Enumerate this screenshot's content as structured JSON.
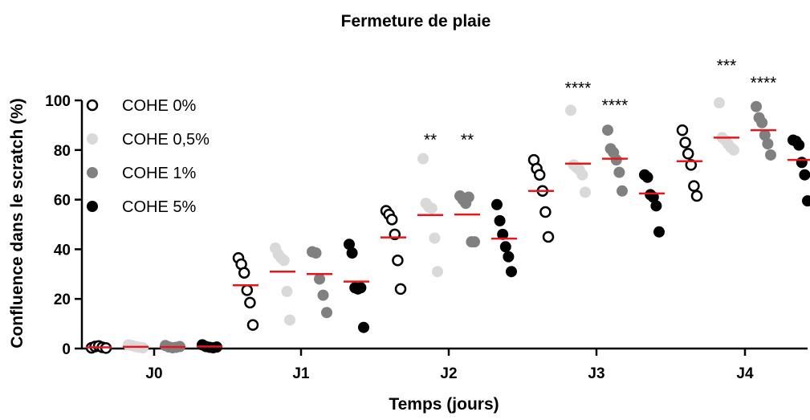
{
  "chart_data": {
    "type": "scatter",
    "title": "Fermeture de plaie",
    "xlabel": "Temps (jours)",
    "ylabel": "Confluence dans le scratch (%)",
    "categories": [
      "J0",
      "J1",
      "J2",
      "J3",
      "J4"
    ],
    "ylim": [
      0,
      100
    ],
    "yticks": [
      0,
      20,
      40,
      60,
      80,
      100
    ],
    "legend_position": "top-left",
    "mean_color": "#e8161b",
    "series": [
      {
        "name": "COHE 0%",
        "fill": "none",
        "stroke": "#000000",
        "points": [
          [
            0.3,
            0.8,
            1.0,
            0.5,
            0.2
          ],
          [
            36.5,
            34.0,
            30.5,
            23.5,
            18.5,
            9.5
          ],
          [
            55.5,
            54.0,
            52.0,
            46.0,
            35.5,
            24.0
          ],
          [
            76.0,
            72.5,
            70.0,
            63.5,
            55.0,
            45.0
          ],
          [
            88.0,
            83.0,
            78.5,
            74.0,
            65.5,
            61.5
          ]
        ],
        "means": [
          0.5,
          25.5,
          44.8,
          63.5,
          75.5
        ]
      },
      {
        "name": "COHE 0,5%",
        "fill": "#d9d9d9",
        "stroke": "#d9d9d9",
        "points": [
          [
            1.5,
            1.2,
            0.8,
            0.5,
            0.3
          ],
          [
            40.5,
            38.0,
            36.5,
            35.5,
            23.0,
            11.5
          ],
          [
            76.5,
            58.5,
            57.0,
            56.5,
            44.5,
            31.0
          ],
          [
            96.0,
            74.0,
            73.0,
            72.0,
            70.0,
            63.0
          ],
          [
            99.0,
            85.0,
            84.0,
            82.5,
            81.0,
            80.0
          ]
        ],
        "means": [
          0.7,
          31.0,
          53.8,
          74.5,
          85.0
        ]
      },
      {
        "name": "COHE 1%",
        "fill": "#808080",
        "stroke": "#808080",
        "points": [
          [
            1.2,
            0.6,
            0.3,
            0.5,
            0.8
          ],
          [
            39.0,
            38.5,
            28.0,
            21.5,
            14.5
          ],
          [
            61.5,
            60.0,
            58.5,
            61.0,
            43.0,
            43.0
          ],
          [
            88.0,
            80.5,
            79.0,
            76.0,
            71.0,
            63.5
          ],
          [
            97.5,
            93.0,
            91.0,
            86.0,
            82.5,
            78.0
          ]
        ],
        "means": [
          0.6,
          30.0,
          54.0,
          76.5,
          88.0
        ]
      },
      {
        "name": "COHE 5%",
        "fill": "#000000",
        "stroke": "#000000",
        "points": [
          [
            1.5,
            0.8,
            0.5,
            0.3,
            0.6
          ],
          [
            42.0,
            38.5,
            24.5,
            24.0,
            24.5,
            8.5
          ],
          [
            58.0,
            51.5,
            46.0,
            41.0,
            37.0,
            31.0
          ],
          [
            70.0,
            69.0,
            62.0,
            61.0,
            57.5,
            47.0
          ],
          [
            84.0,
            83.5,
            82.0,
            75.0,
            70.0,
            59.5
          ]
        ],
        "means": [
          0.8,
          27.0,
          44.3,
          62.5,
          76.0
        ]
      }
    ],
    "annotations": [
      {
        "text": "**",
        "category": 2,
        "series": 1,
        "y": 87
      },
      {
        "text": "**",
        "category": 2,
        "series": 2,
        "y": 87
      },
      {
        "text": "****",
        "category": 3,
        "series": 1,
        "y": 108
      },
      {
        "text": "****",
        "category": 3,
        "series": 2,
        "y": 101
      },
      {
        "text": "***",
        "category": 4,
        "series": 1,
        "y": 117
      },
      {
        "text": "****",
        "category": 4,
        "series": 2,
        "y": 110
      }
    ]
  }
}
